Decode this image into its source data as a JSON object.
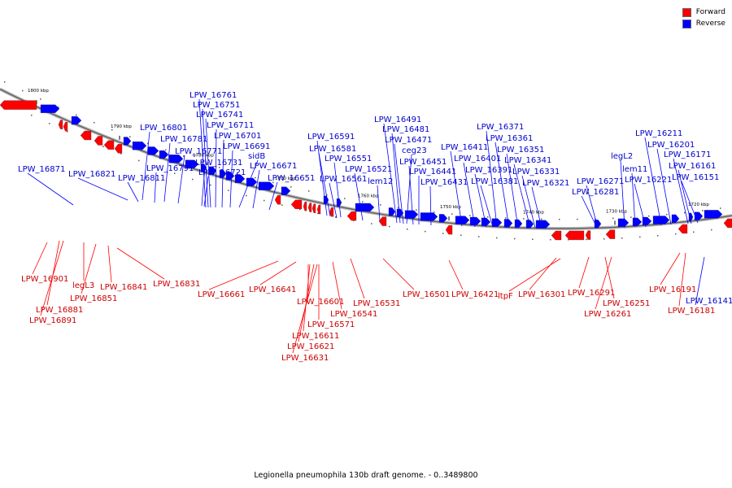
{
  "legend": [
    {
      "label": "Forward",
      "color": "#ff0000"
    },
    {
      "label": "Reverse",
      "color": "#0000ff"
    }
  ],
  "caption": "Legionella pneumophila 130b draft genome. - 0..3489800",
  "colors": {
    "forward": "#ff0000",
    "reverse": "#0000ff",
    "forward_text": "#cc0000",
    "reverse_text": "#0000cc",
    "backbone": "#888888"
  },
  "scale_labels": [
    "1800 kbp",
    "1790 kbp",
    "1780 kbp",
    "1770 kbp",
    "1760 kbp",
    "1750 kbp",
    "1740 kbp",
    "1730 kbp",
    "1720 kbp"
  ],
  "reverse_genes": [
    "LPW_16761",
    "LPW_16751",
    "LPW_16741",
    "LPW_16711",
    "LPW_16701",
    "LPW_16691",
    "sidB",
    "LPW_16671",
    "LPW_16651",
    "LPW_16801",
    "LPW_16781",
    "LPW_16771",
    "LPW_16791",
    "LPW_16731",
    "LPW_16721",
    "LPW_16871",
    "LPW_16821",
    "LPW_16811",
    "LPW_16591",
    "LPW_16581",
    "LPW_16551",
    "LPW_16521",
    "LPW_16561",
    "lem12",
    "LPW_16491",
    "LPW_16481",
    "LPW_16471",
    "ceg23",
    "LPW_16451",
    "LPW_16441",
    "LPW_16431",
    "LPW_16411",
    "LPW_16401",
    "LPW_16391",
    "LPW_16381",
    "LPW_16371",
    "LPW_16361",
    "LPW_16351",
    "LPW_16341",
    "LPW_16331",
    "LPW_16321",
    "legL2",
    "lem11",
    "LPW_16271",
    "LPW_16281",
    "LPW_16221",
    "LPW_16211",
    "LPW_16201",
    "LPW_16171",
    "LPW_16161",
    "LPW_16151",
    "LPW_16141"
  ],
  "forward_genes": [
    "LPW_16901",
    "legL3",
    "LPW_16881",
    "LPW_16891",
    "LPW_16851",
    "LPW_16841",
    "LPW_16831",
    "LPW_16661",
    "LPW_16641",
    "LPW_16601",
    "LPW_16571",
    "LPW_16611",
    "LPW_16621",
    "LPW_16631",
    "LPW_16541",
    "LPW_16531",
    "LPW_16501",
    "LPW_16421",
    "ltpF",
    "LPW_16301",
    "LPW_16291",
    "LPW_16251",
    "LPW_16261",
    "LPW_16191",
    "LPW_16181"
  ]
}
